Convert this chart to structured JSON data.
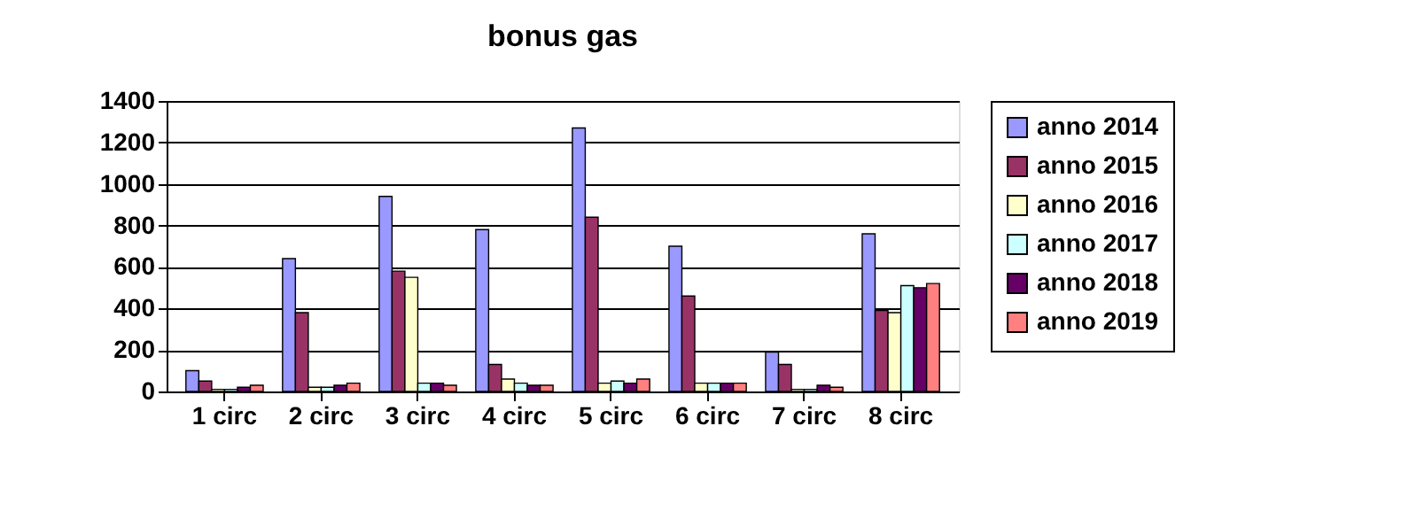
{
  "chart_data": {
    "type": "bar",
    "title": "bonus gas",
    "categories": [
      "1 circ",
      "2 circ",
      "3 circ",
      "4 circ",
      "5 circ",
      "6 circ",
      "7 circ",
      "8 circ"
    ],
    "series": [
      {
        "name": "anno 2014",
        "color": "#9999ff",
        "values": [
          100,
          640,
          940,
          780,
          1270,
          700,
          190,
          760
        ]
      },
      {
        "name": "anno 2015",
        "color": "#993366",
        "values": [
          50,
          380,
          580,
          130,
          840,
          460,
          130,
          390
        ]
      },
      {
        "name": "anno 2016",
        "color": "#ffffcc",
        "values": [
          10,
          20,
          550,
          60,
          40,
          40,
          10,
          380
        ]
      },
      {
        "name": "anno 2017",
        "color": "#ccffff",
        "values": [
          10,
          20,
          40,
          40,
          50,
          40,
          10,
          510
        ]
      },
      {
        "name": "anno 2018",
        "color": "#660066",
        "values": [
          20,
          30,
          40,
          30,
          40,
          40,
          30,
          500
        ]
      },
      {
        "name": "anno 2019",
        "color": "#ff8080",
        "values": [
          30,
          40,
          30,
          30,
          60,
          40,
          20,
          520
        ]
      }
    ],
    "ylim": [
      0,
      1400
    ],
    "yticks": [
      0,
      200,
      400,
      600,
      800,
      1000,
      1200,
      1400
    ],
    "grid": "y",
    "legend": "right"
  }
}
